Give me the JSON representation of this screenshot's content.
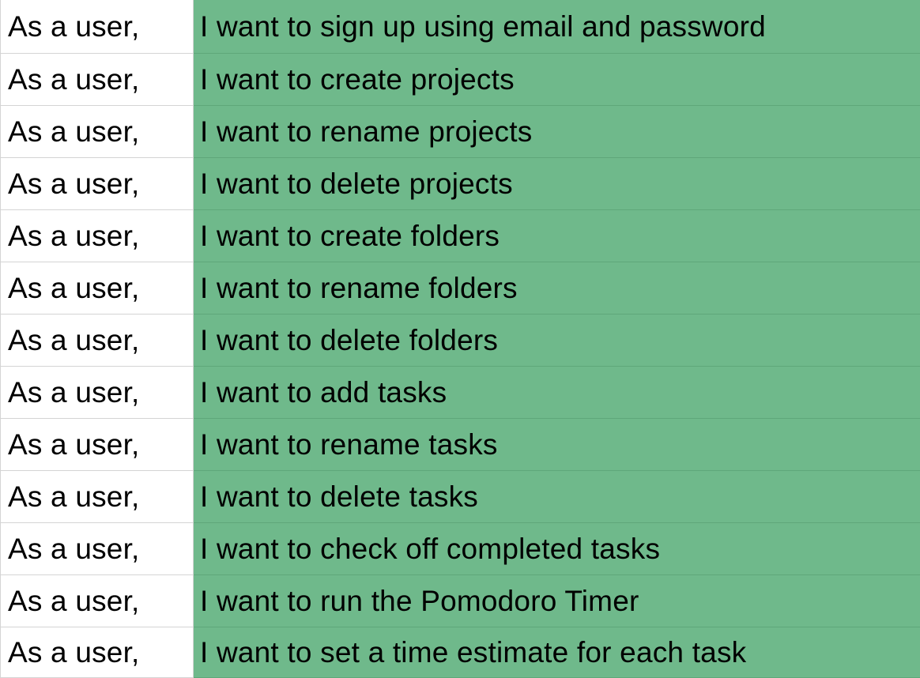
{
  "colors": {
    "highlight_fill": "#6fb98b",
    "grid_line": "#d4d4d4",
    "cell_fill": "#ffffff",
    "text": "#000000"
  },
  "rows": [
    {
      "role": "As a user,",
      "story": "I want to sign up using email and password"
    },
    {
      "role": "As a user,",
      "story": "I want to create projects"
    },
    {
      "role": "As a user,",
      "story": "I want to rename projects"
    },
    {
      "role": "As a user,",
      "story": "I want to delete projects"
    },
    {
      "role": "As a user,",
      "story": "I want to create folders"
    },
    {
      "role": "As a user,",
      "story": "I want to rename folders"
    },
    {
      "role": "As a user,",
      "story": "I want to delete folders"
    },
    {
      "role": "As a user,",
      "story": "I want to add tasks"
    },
    {
      "role": "As a user,",
      "story": "I want to rename tasks"
    },
    {
      "role": "As a user,",
      "story": "I want to delete tasks"
    },
    {
      "role": "As a user,",
      "story": "I want to check off completed tasks"
    },
    {
      "role": "As a user,",
      "story": "I want to run the Pomodoro Timer"
    },
    {
      "role": "As a user,",
      "story": "I want to set a time estimate for each task"
    }
  ]
}
